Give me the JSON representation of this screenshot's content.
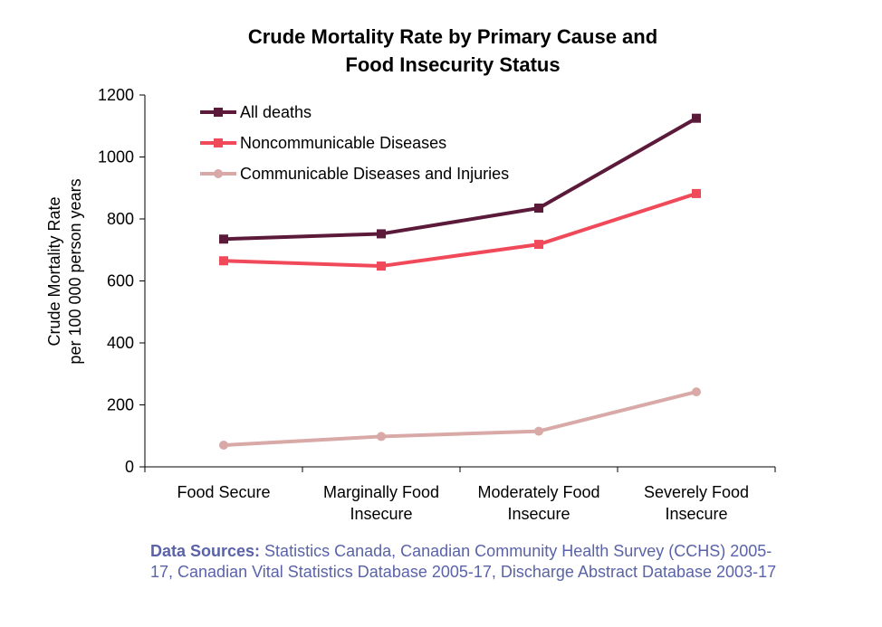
{
  "chart_data": {
    "type": "line",
    "title_lines": [
      "Crude Mortality Rate by Primary Cause and",
      "Food Insecurity Status"
    ],
    "ylabel_lines": [
      "Crude Mortality Rate",
      "per 100 000 person years"
    ],
    "xlabel": "",
    "ylim": [
      0,
      1200
    ],
    "yticks": [
      0,
      200,
      400,
      600,
      800,
      1000,
      1200
    ],
    "categories": [
      [
        "Food Secure"
      ],
      [
        "Marginally Food",
        "Insecure"
      ],
      [
        "Moderately Food",
        "Insecure"
      ],
      [
        "Severely Food",
        "Insecure"
      ]
    ],
    "series": [
      {
        "name": "All deaths",
        "color": "#5c1a3a",
        "marker": "square",
        "values": [
          735,
          752,
          835,
          1125
        ]
      },
      {
        "name": "Noncommunicable Diseases",
        "color": "#f04a5a",
        "marker": "square",
        "values": [
          665,
          648,
          718,
          882
        ]
      },
      {
        "name": "Communicable Diseases and Injuries",
        "color": "#d8a9a6",
        "marker": "circle",
        "values": [
          70,
          98,
          115,
          242
        ]
      }
    ],
    "legend_position": "top-left",
    "grid": false
  },
  "source": {
    "label": "Data Sources:",
    "text": " Statistics Canada, Canadian Community Health Survey (CCHS) 2005-17, Canadian Vital Statistics Database 2005-17, Discharge Abstract Database 2003-17"
  }
}
